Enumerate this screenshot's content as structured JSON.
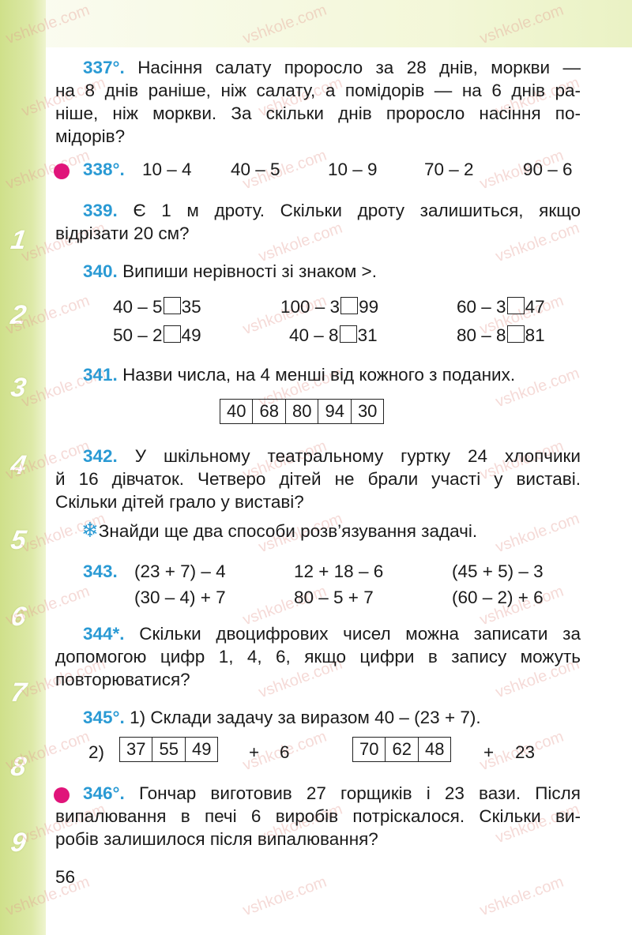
{
  "watermark": "vshkole.com",
  "sidebar_digits": [
    "1",
    "2",
    "3",
    "4",
    "5",
    "6",
    "7",
    "8",
    "9"
  ],
  "p337": {
    "num": "337°.",
    "lines": [
      "Насіння салату проросло за 28 днів, моркви —",
      "на 8 днів раніше, ніж салату, а помідорів — на 6 днів ра-",
      "ніше, ніж моркви. За скільки днів проросло насіння по-",
      "мідорів?"
    ]
  },
  "p338": {
    "num": "338°.",
    "exprs": [
      "10 – 4",
      "40 – 5",
      "10 – 9",
      "70 – 2",
      "90 – 6"
    ]
  },
  "p339": {
    "num": "339.",
    "lines": [
      "Є 1 м дроту. Скільки дроту залишиться, якщо",
      "відрізати 20 см?"
    ]
  },
  "p340": {
    "num": "340.",
    "text": "Випиши нерівності зі знаком >.",
    "rows": [
      [
        {
          "l": "40 – 5",
          "r": "35"
        },
        {
          "l": "100 – 3",
          "r": "99"
        },
        {
          "l": "60 – 3",
          "r": "47"
        }
      ],
      [
        {
          "l": "50 – 2",
          "r": "49"
        },
        {
          "l": "40 – 8",
          "r": "31"
        },
        {
          "l": "80 – 8",
          "r": "81"
        }
      ]
    ]
  },
  "p341": {
    "num": "341.",
    "text": "Назви числа, на 4 менші від кожного з поданих.",
    "cells": [
      "40",
      "68",
      "80",
      "94",
      "30"
    ]
  },
  "p342": {
    "num": "342.",
    "lines": [
      "У шкільному театральному гуртку 24 хлопчики",
      "й 16 дівчаток. Четверо дітей не брали участі у виставі.",
      "Скільки дітей грало у виставі?"
    ],
    "extra": "Знайди ще два способи розв’язування задачі."
  },
  "p343": {
    "num": "343.",
    "rows": [
      [
        "(23 + 7) – 4",
        "12 + 18 – 6",
        "(45 + 5) – 3"
      ],
      [
        "(30 – 4) + 7",
        "80 – 5 + 7",
        "(60 – 2) + 6"
      ]
    ]
  },
  "p344": {
    "num": "344*.",
    "lines": [
      "Скільки двоцифрових чисел можна записати за",
      "допомогою цифр 1, 4, 6, якщо цифри в запису можуть",
      "повторюватися?"
    ]
  },
  "p345": {
    "num": "345°.",
    "text": "1) Склади задачу за виразом 40 – (23 + 7).",
    "label2": "2)",
    "cellsA": [
      "37",
      "55",
      "49"
    ],
    "plusA": "+",
    "addA": "6",
    "cellsB": [
      "70",
      "62",
      "48"
    ],
    "plusB": "+",
    "addB": "23"
  },
  "p346": {
    "num": "346°.",
    "lines": [
      "Гончар виготовив 27 горщиків і 23 вази. Після",
      "випалювання в печі 6 виробів потріскалося. Скільки ви-",
      "робів залишилося після випалювання?"
    ]
  },
  "page_number": "56",
  "colors": {
    "number_blue": "#2a9ad4",
    "bullet_pink": "#e0147a",
    "sidebar_green": "#d4e396"
  }
}
